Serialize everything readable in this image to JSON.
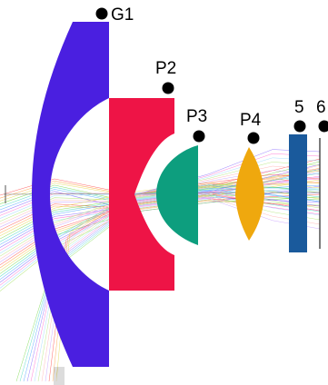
{
  "labels": {
    "g1": "G1",
    "p2": "P2",
    "p3": "P3",
    "p4": "P4",
    "e5": "5",
    "e6": "6"
  },
  "colors": {
    "g1": "#4a1fe0",
    "p2": "#ee1446",
    "p3": "#0d9e7e",
    "p4": "#efa80e",
    "e5": "#1a5a9c",
    "marker": "#000000"
  }
}
